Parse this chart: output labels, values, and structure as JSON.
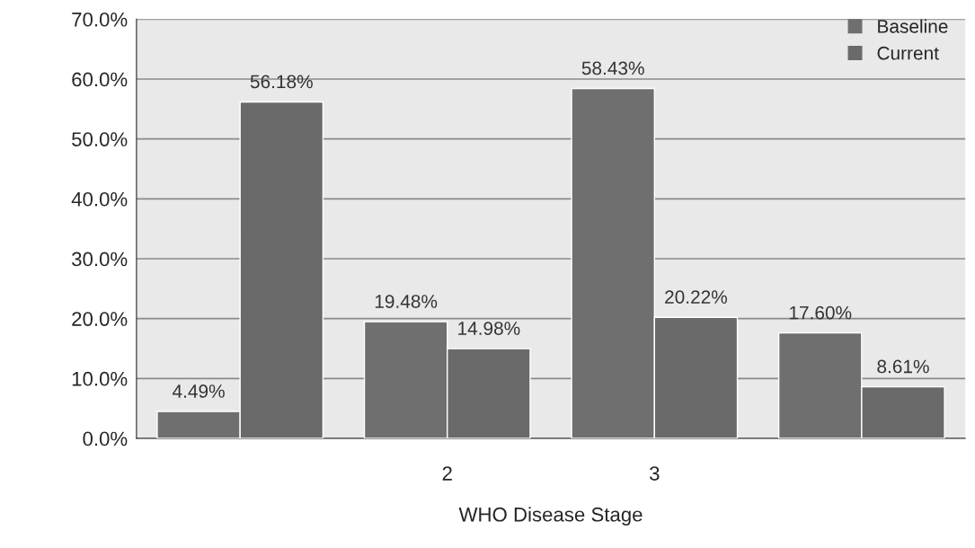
{
  "chart_data": {
    "type": "bar",
    "xlabel": "WHO Disease Stage",
    "categories": [
      null,
      "2",
      "3",
      null
    ],
    "series": [
      {
        "name": "Baseline",
        "color": "#6f6f6f",
        "values": [
          4.49,
          19.48,
          58.43,
          17.6
        ],
        "value_labels": [
          "4.49%",
          "19.48%",
          "58.43%",
          "17.60%"
        ]
      },
      {
        "name": "Current",
        "color": "#6a6a6a",
        "values": [
          56.18,
          14.98,
          20.22,
          8.61
        ],
        "value_labels": [
          "56.18%",
          "14.98%",
          "20.22%",
          "8.61%"
        ]
      }
    ],
    "ylim": [
      0,
      70
    ],
    "yticks": [
      {
        "value": 0,
        "label": "0.0%"
      },
      {
        "value": 10,
        "label": "10.0%"
      },
      {
        "value": 20,
        "label": "20.0%"
      },
      {
        "value": 30,
        "label": "30.0%"
      },
      {
        "value": 40,
        "label": "40.0%"
      },
      {
        "value": 50,
        "label": "50.0%"
      },
      {
        "value": 60,
        "label": "60.0%"
      },
      {
        "value": 70,
        "label": "70.0%"
      }
    ],
    "grid": "y",
    "legend": "top right"
  }
}
